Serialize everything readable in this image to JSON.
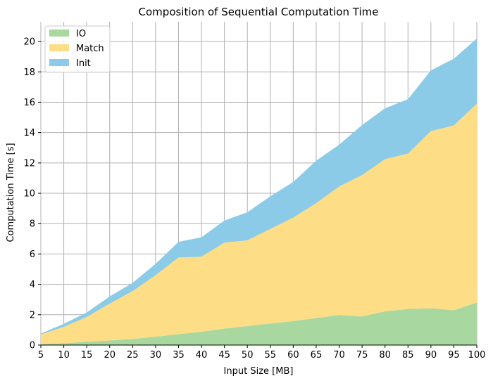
{
  "chart_data": {
    "type": "area",
    "stacked": true,
    "title": "Composition of Sequential Computation Time",
    "xlabel": "Input Size [MB]",
    "ylabel": "Computation Time [s]",
    "x": [
      5,
      10,
      15,
      20,
      25,
      30,
      35,
      40,
      45,
      50,
      55,
      60,
      65,
      70,
      75,
      80,
      85,
      90,
      95,
      100
    ],
    "xlim": [
      5,
      100
    ],
    "ylim": [
      0,
      21.3
    ],
    "yticks": [
      0,
      2,
      4,
      6,
      8,
      10,
      12,
      14,
      16,
      18,
      20
    ],
    "grid": true,
    "legend_position": "top-left",
    "series": [
      {
        "name": "IO",
        "color": "#a8d8a0",
        "values": [
          0.05,
          0.12,
          0.22,
          0.3,
          0.4,
          0.55,
          0.72,
          0.88,
          1.08,
          1.25,
          1.42,
          1.58,
          1.78,
          1.98,
          1.88,
          2.22,
          2.38,
          2.42,
          2.3,
          2.8
        ]
      },
      {
        "name": "Match",
        "color": "#fdde86",
        "values": [
          0.65,
          1.08,
          1.63,
          2.43,
          3.15,
          4.05,
          5.05,
          4.94,
          5.67,
          5.65,
          6.23,
          6.82,
          7.57,
          8.47,
          9.32,
          10.03,
          10.24,
          11.68,
          12.17,
          13.1
        ]
      },
      {
        "name": "Init",
        "color": "#8ccbe8",
        "values": [
          0.05,
          0.2,
          0.3,
          0.47,
          0.55,
          0.75,
          1.03,
          1.28,
          1.45,
          1.85,
          2.15,
          2.35,
          2.8,
          2.75,
          3.3,
          3.35,
          3.58,
          4.0,
          4.4,
          4.3
        ]
      }
    ]
  }
}
